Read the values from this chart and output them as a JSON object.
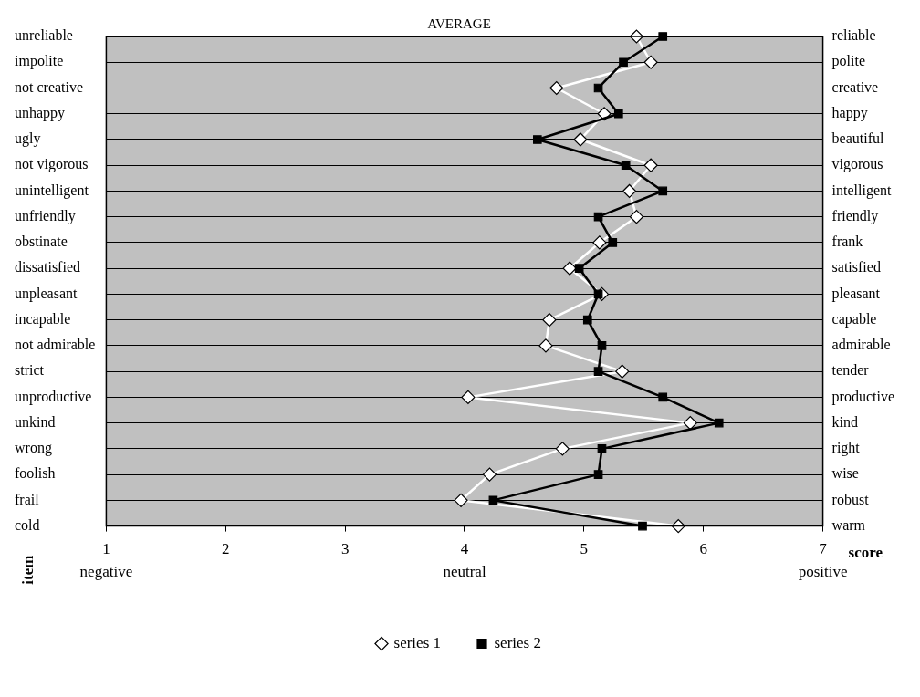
{
  "chart_data": {
    "type": "line",
    "title": "AVERAGE",
    "xlabel": "score",
    "ylabel": "item",
    "categories": [
      "unreliable",
      "impolite",
      "not creative",
      "unhappy",
      "ugly",
      "not vigorous",
      "unintelligent",
      "unfriendly",
      "obstinate",
      "dissatisfied",
      "unpleasant",
      "incapable",
      "not admirable",
      "strict",
      "unproductive",
      "unkind",
      "wrong",
      "foolish",
      "frail",
      "cold"
    ],
    "y2_categories": [
      "reliable",
      "polite",
      "creative",
      "happy",
      "beautiful",
      "vigorous",
      "intelligent",
      "friendly",
      "frank",
      "satisfied",
      "pleasant",
      "capable",
      "admirable",
      "tender",
      "productive",
      "kind",
      "right",
      "wise",
      "robust",
      "warm"
    ],
    "series": [
      {
        "name": "series 1",
        "color": "#ffffff",
        "marker": "diamond",
        "values": [
          5.44,
          5.56,
          4.77,
          5.17,
          4.97,
          5.56,
          5.38,
          5.44,
          5.13,
          4.88,
          5.15,
          4.71,
          4.68,
          5.32,
          4.03,
          5.89,
          4.82,
          4.21,
          3.97,
          5.79
        ]
      },
      {
        "name": "series 2",
        "color": "#000000",
        "marker": "square",
        "values": [
          5.66,
          5.33,
          5.12,
          5.29,
          4.61,
          5.35,
          5.66,
          5.12,
          5.24,
          4.96,
          5.12,
          5.03,
          5.15,
          5.12,
          5.66,
          6.13,
          5.15,
          5.12,
          4.24,
          5.49
        ]
      }
    ],
    "xlim": [
      1,
      7
    ],
    "xticks": [
      1,
      2,
      3,
      4,
      5,
      6,
      7
    ],
    "annotations": [
      "negative",
      "neutral",
      "positive"
    ],
    "grid": "y",
    "legend": "bottom",
    "line_style": "solid",
    "orientation": "horizontal"
  }
}
